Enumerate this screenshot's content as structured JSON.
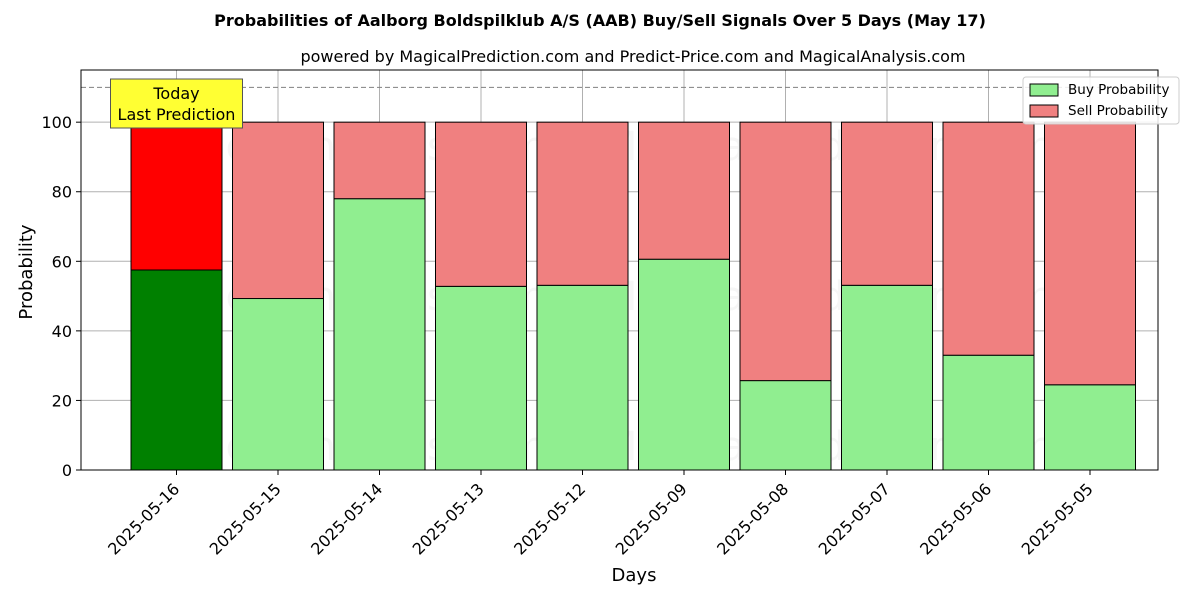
{
  "chart_data": {
    "type": "bar",
    "stacked": true,
    "title": "Probabilities of Aalborg Boldspilklub A/S (AAB) Buy/Sell Signals Over 5 Days (May 17)",
    "subtitle": "powered by MagicalPrediction.com and Predict-Price.com and MagicalAnalysis.com",
    "xlabel": "Days",
    "ylabel": "Probability",
    "ylim": [
      0,
      115
    ],
    "yticks": [
      0,
      20,
      40,
      60,
      80,
      100
    ],
    "grid": true,
    "legend_position": "top-right",
    "reference_line": 110,
    "categories": [
      "2025-05-16",
      "2025-05-15",
      "2025-05-14",
      "2025-05-13",
      "2025-05-12",
      "2025-05-09",
      "2025-05-08",
      "2025-05-07",
      "2025-05-06",
      "2025-05-05"
    ],
    "series": [
      {
        "name": "Buy Probability",
        "values": [
          57.5,
          49.3,
          78.0,
          52.8,
          53.1,
          60.6,
          25.7,
          53.1,
          33.0,
          24.5
        ],
        "color": "#90ee90",
        "highlight_color": "#008000"
      },
      {
        "name": "Sell Probability",
        "values": [
          42.5,
          50.7,
          22.0,
          47.2,
          46.9,
          39.4,
          74.3,
          46.9,
          67.0,
          75.5
        ],
        "color": "#f08080",
        "highlight_color": "#ff0000"
      }
    ],
    "annotation": {
      "lines": [
        "Today",
        "Last Prediction"
      ],
      "color": "#ffff33"
    },
    "watermarks": [
      "MagicalAnalysis.com",
      "MagicalPrediction.com"
    ]
  }
}
